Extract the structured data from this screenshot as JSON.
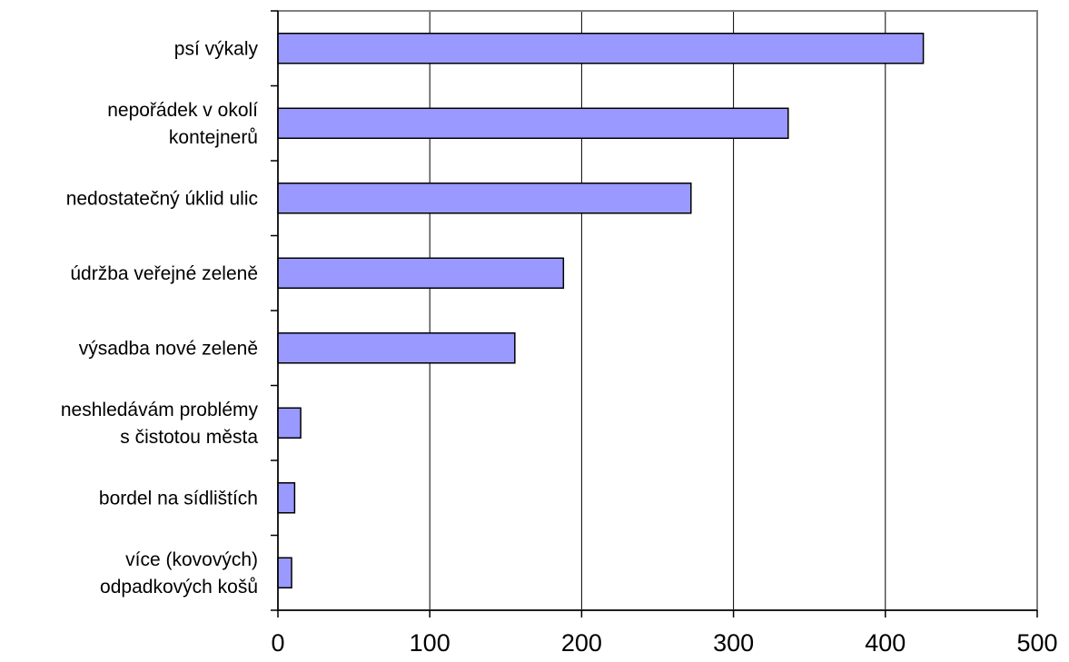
{
  "chart_data": {
    "type": "bar",
    "orientation": "horizontal",
    "categories": [
      [
        "psí výkaly"
      ],
      [
        "nepořádek v okolí",
        "kontejnerů"
      ],
      [
        "nedostatečný úklid ulic"
      ],
      [
        "údržba veřejné zeleně"
      ],
      [
        "výsadba nové zeleně"
      ],
      [
        "neshledávám problémy",
        "s čistotou města"
      ],
      [
        "bordel na sídlištích"
      ],
      [
        "více (kovových)",
        "odpadkových košů"
      ]
    ],
    "values": [
      425,
      336,
      272,
      188,
      156,
      15,
      11,
      9
    ],
    "xlim": [
      0,
      500
    ],
    "xticks": [
      "0",
      "100",
      "200",
      "300",
      "400",
      "500"
    ],
    "grid": "vertical",
    "bar_color": "#9999ff",
    "bar_edge_color": "#000000",
    "grid_color": "#000000",
    "frame_color": "#808080"
  }
}
